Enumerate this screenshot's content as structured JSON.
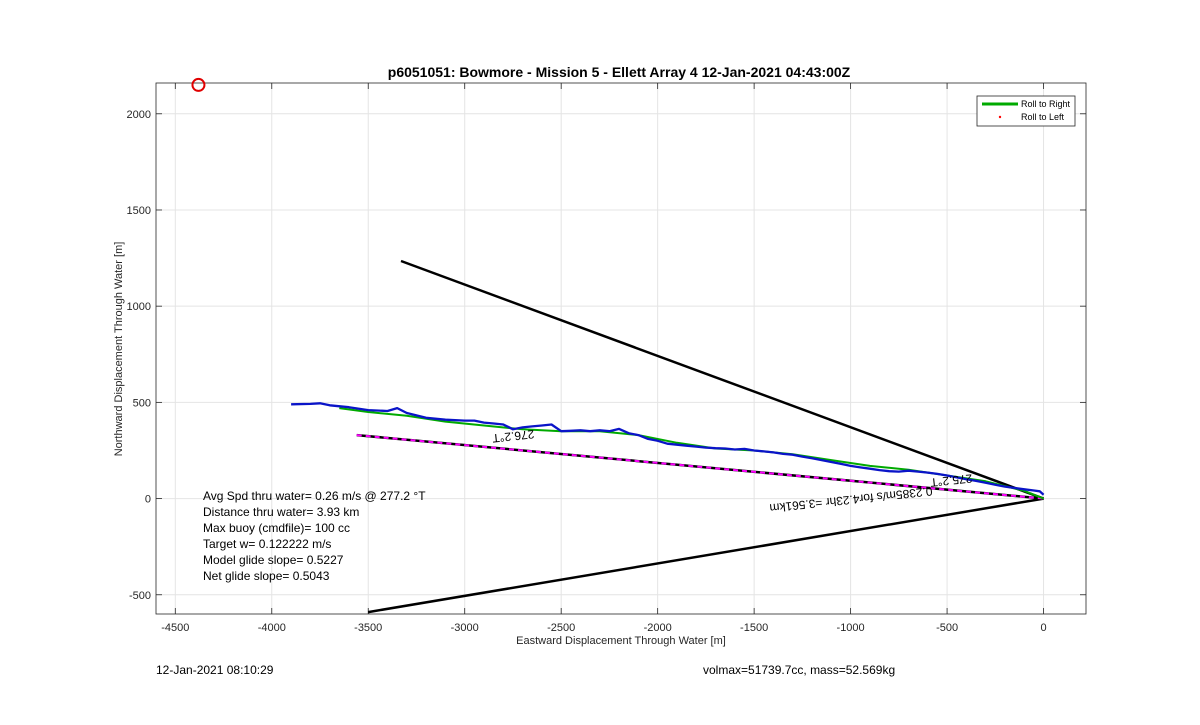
{
  "chart_data": {
    "type": "line",
    "title": "p6051051: Bowmore - Mission 5 - Ellett Array 4 12-Jan-2021 04:43:00Z",
    "xlabel": "Eastward Displacement Through Water [m]",
    "ylabel": "Northward Displacement Through Water [m]",
    "xlim": [
      -4600,
      220
    ],
    "ylim": [
      -600,
      2160
    ],
    "xticks": [
      -4500,
      -4000,
      -3500,
      -3000,
      -2500,
      -2000,
      -1500,
      -1000,
      -500,
      0
    ],
    "yticks": [
      -500,
      0,
      500,
      1000,
      1500,
      2000
    ],
    "grid": true,
    "legend_position": "top-right",
    "legend": [
      {
        "label": "Roll to Right",
        "color": "#00aa00",
        "style": "line"
      },
      {
        "label": "Roll to Left",
        "color": "#ff0000",
        "style": "dot"
      }
    ],
    "series": [
      {
        "name": "Roll to Right",
        "color": "#00aa00",
        "x": [
          -3650,
          -3500,
          -3300,
          -3100,
          -2900,
          -2700,
          -2500,
          -2300,
          -2100,
          -1900,
          -1700,
          -1500,
          -1300,
          -1100,
          -900,
          -700,
          -500,
          -300,
          -100,
          0
        ],
        "y": [
          470,
          450,
          430,
          400,
          380,
          360,
          350,
          350,
          330,
          290,
          260,
          250,
          230,
          200,
          170,
          150,
          120,
          90,
          40,
          0
        ]
      },
      {
        "color": "#0a14c8",
        "x": [
          -3900,
          -3800,
          -3750,
          -3700,
          -3600,
          -3500,
          -3400,
          -3350,
          -3300,
          -3200,
          -3100,
          -3000,
          -2950,
          -2900,
          -2850,
          -2800,
          -2750,
          -2700,
          -2650,
          -2600,
          -2550,
          -2500,
          -2450,
          -2400,
          -2350,
          -2300,
          -2250,
          -2200,
          -2150,
          -2100,
          -2050,
          -2000,
          -1950,
          -1900,
          -1850,
          -1800,
          -1750,
          -1700,
          -1650,
          -1600,
          -1550,
          -1500,
          -1450,
          -1400,
          -1350,
          -1300,
          -1250,
          -1200,
          -1150,
          -1100,
          -1050,
          -1000,
          -950,
          -900,
          -850,
          -800,
          -750,
          -700,
          -650,
          -600,
          -550,
          -500,
          -450,
          -400,
          -350,
          -300,
          -250,
          -200,
          -150,
          -100,
          -50,
          -20,
          0
        ],
        "y": [
          490,
          492,
          495,
          485,
          475,
          460,
          455,
          470,
          445,
          420,
          410,
          405,
          405,
          395,
          390,
          385,
          360,
          370,
          375,
          380,
          385,
          350,
          352,
          355,
          350,
          355,
          350,
          362,
          340,
          330,
          310,
          300,
          285,
          280,
          275,
          270,
          265,
          262,
          260,
          255,
          258,
          250,
          245,
          240,
          232,
          228,
          218,
          210,
          200,
          190,
          180,
          170,
          162,
          155,
          148,
          142,
          140,
          145,
          140,
          135,
          128,
          120,
          110,
          100,
          92,
          82,
          72,
          62,
          55,
          48,
          42,
          38,
          20
        ]
      }
    ],
    "reference_lines": [
      {
        "color": "#000000",
        "x": [
          -3330,
          0
        ],
        "y": [
          1235,
          0
        ]
      },
      {
        "color": "#000000",
        "x": [
          -3500,
          0
        ],
        "y": [
          -590,
          0
        ]
      },
      {
        "color": "#000000",
        "dashed_color": "#ff00ff",
        "x": [
          -3560,
          0
        ],
        "y": [
          330,
          0
        ]
      }
    ],
    "marker": {
      "shape": "circle",
      "color": "#e00000",
      "x": -4380,
      "y": 2150
    },
    "line_labels": [
      {
        "text": "276.2°T",
        "x": -2750,
        "y": 345,
        "angle": 174
      },
      {
        "text": "275.2°T",
        "x": -480,
        "y": 115,
        "angle": 174
      },
      {
        "text": "0.2385m/s for4.23hr =3.561km",
        "x": -1000,
        "y": 15,
        "angle": 174
      }
    ],
    "annotations": [
      "Avg Spd thru water=  0.26 m/s @ 277.2 °T",
      "Distance thru water=  3.93 km",
      "Max buoy (cmdfile)= 100 cc",
      "Target w= 0.122222 m/s",
      "Model glide slope= 0.5227",
      "Net glide slope= 0.5043"
    ]
  },
  "footer": {
    "timestamp": "12-Jan-2021 08:10:29",
    "volmax_mass": "volmax=51739.7cc, mass=52.569kg"
  }
}
